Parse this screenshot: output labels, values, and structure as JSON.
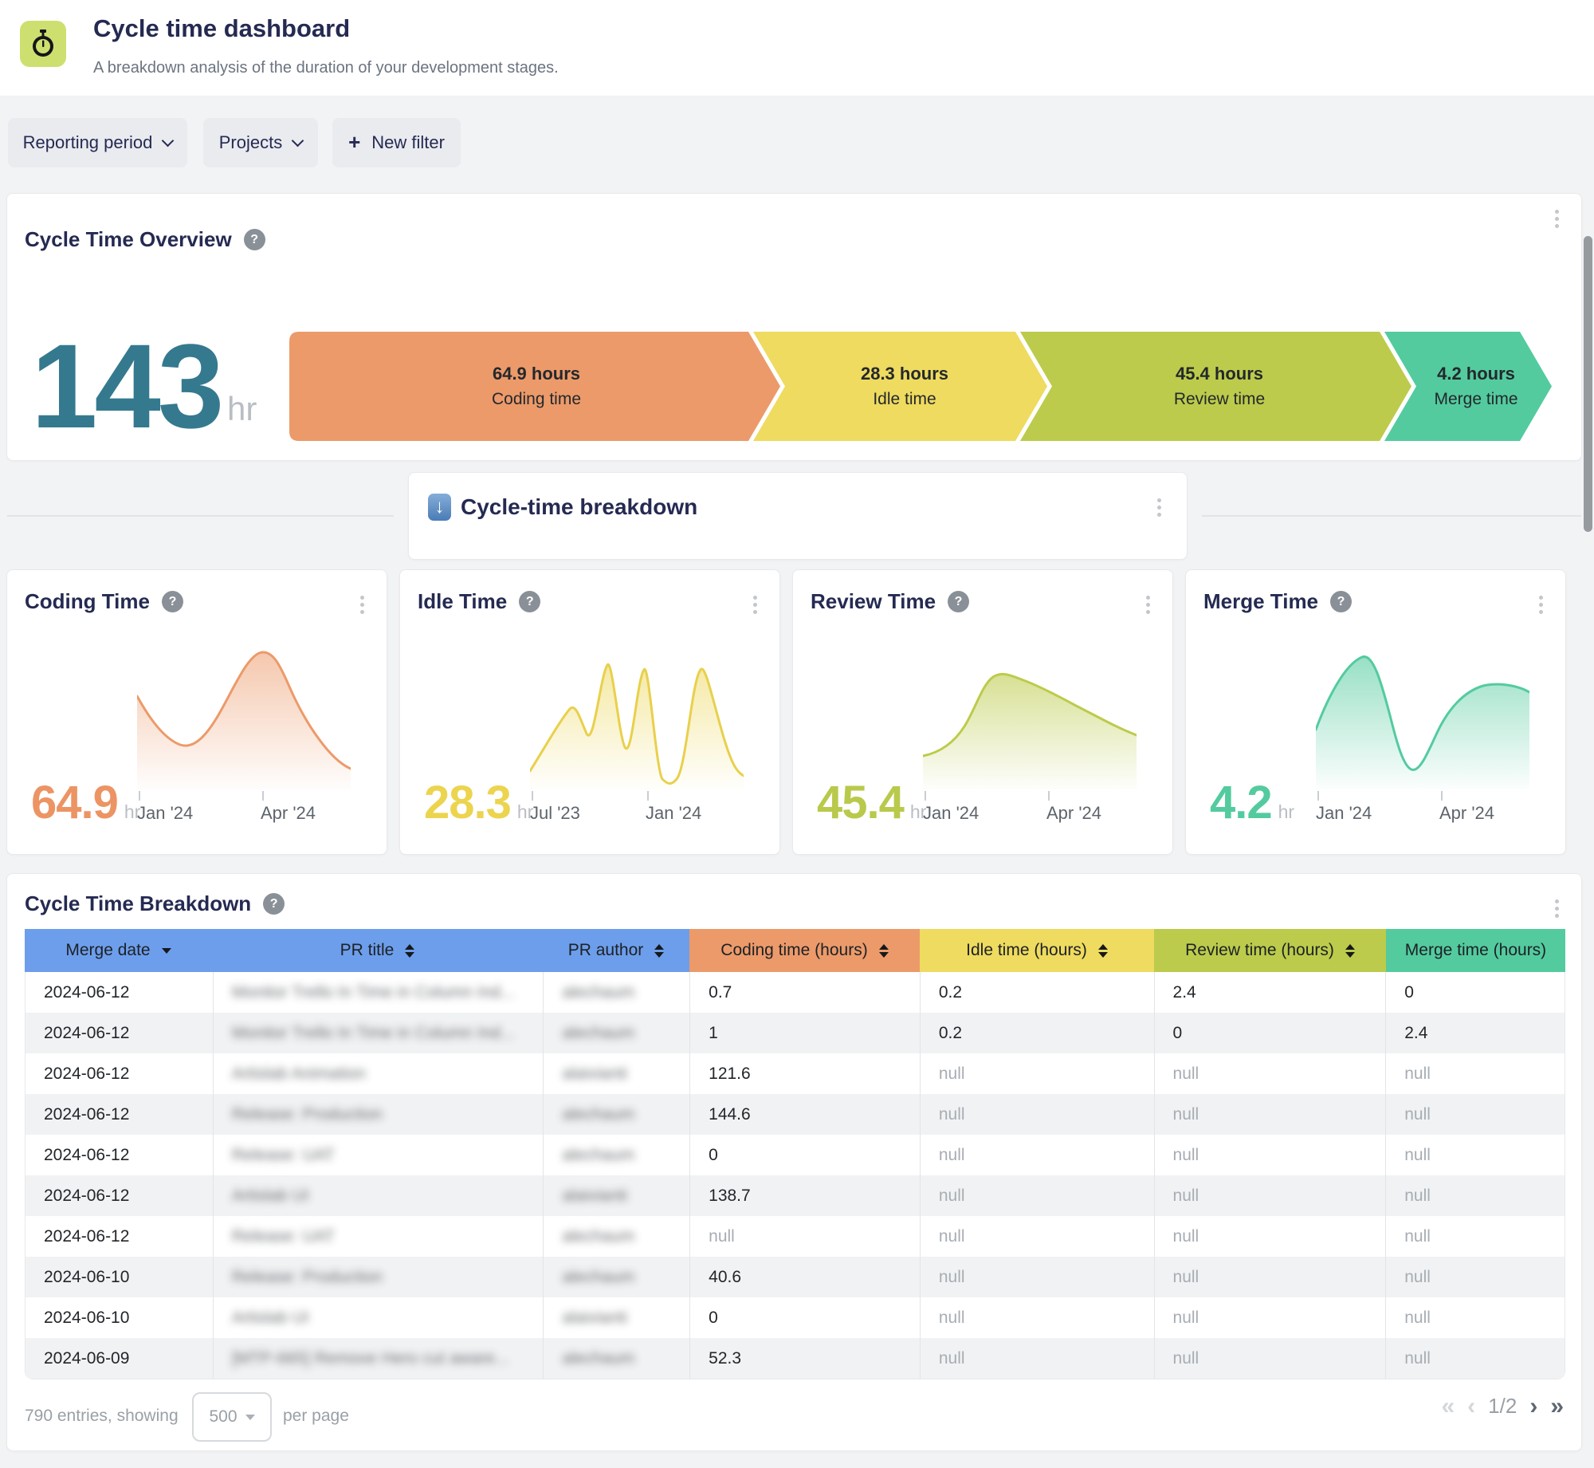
{
  "app": {
    "title": "Cycle time dashboard",
    "subtitle": "A breakdown analysis of the duration of your development stages.",
    "icon": "stopwatch-icon"
  },
  "filters": {
    "reporting_period": "Reporting period",
    "projects": "Projects",
    "new_filter": "New filter",
    "plus_glyph": "+"
  },
  "overview": {
    "title": "Cycle Time Overview",
    "total_value": "143",
    "total_unit": "hr",
    "segments": [
      {
        "value": "64.9 hours",
        "label": "Coding time",
        "color": "#ec9a6a"
      },
      {
        "value": "28.3 hours",
        "label": "Idle time",
        "color": "#eedb5f"
      },
      {
        "value": "45.4 hours",
        "label": "Review time",
        "color": "#bccb4b"
      },
      {
        "value": "4.2 hours",
        "label": "Merge time",
        "color": "#53cb9f"
      }
    ]
  },
  "banner": {
    "title": "Cycle-time breakdown",
    "emoji_glyph": "↓"
  },
  "metric_cards": [
    {
      "title": "Coding Time",
      "value": "64.9",
      "unit": "hr",
      "color": "#ec9a6a",
      "ticks": [
        "Jan '24",
        "Apr '24"
      ]
    },
    {
      "title": "Idle Time",
      "value": "28.3",
      "unit": "hr",
      "color": "#ecd75a",
      "ticks": [
        "Jul '23",
        "Jan '24"
      ]
    },
    {
      "title": "Review Time",
      "value": "45.4",
      "unit": "hr",
      "color": "#bccb4b",
      "ticks": [
        "Jan '24",
        "Apr '24"
      ]
    },
    {
      "title": "Merge Time",
      "value": "4.2",
      "unit": "hr",
      "color": "#53cb9f",
      "ticks": [
        "Jan '24",
        "Apr '24"
      ]
    }
  ],
  "table": {
    "title": "Cycle Time Breakdown",
    "columns": [
      {
        "label": "Merge date",
        "sort": "desc",
        "color": "#6d9eeb"
      },
      {
        "label": "PR title",
        "sort": "both",
        "color": "#6d9eeb"
      },
      {
        "label": "PR author",
        "sort": "both",
        "color": "#6d9eeb"
      },
      {
        "label": "Coding time (hours)",
        "sort": "both",
        "color": "#ec9a6a"
      },
      {
        "label": "Idle time (hours)",
        "sort": "both",
        "color": "#eedb5f"
      },
      {
        "label": "Review time (hours)",
        "sort": "both",
        "color": "#bccb4b"
      },
      {
        "label": "Merge time (hours)",
        "sort": "none",
        "color": "#53cb9f"
      }
    ],
    "blurred_columns": [
      1,
      2
    ],
    "rows": [
      [
        "2024-06-12",
        "Monitor Trello In Time in Column Ind...",
        "alechaum",
        "0.7",
        "0.2",
        "2.4",
        "0"
      ],
      [
        "2024-06-12",
        "Monitor Trello In Time in Column Ind...",
        "alechaum",
        "1",
        "0.2",
        "0",
        "2.4"
      ],
      [
        "2024-06-12",
        "Artislab Animation",
        "alaivianti",
        "121.6",
        "null",
        "null",
        "null"
      ],
      [
        "2024-06-12",
        "Release: Production",
        "alechaum",
        "144.6",
        "null",
        "null",
        "null"
      ],
      [
        "2024-06-12",
        "Release: UAT",
        "alechaum",
        "0",
        "null",
        "null",
        "null"
      ],
      [
        "2024-06-12",
        "Artislab UI",
        "alaivianti",
        "138.7",
        "null",
        "null",
        "null"
      ],
      [
        "2024-06-12",
        "Release: UAT",
        "alechaum",
        "null",
        "null",
        "null",
        "null"
      ],
      [
        "2024-06-10",
        "Release: Production",
        "alechaum",
        "40.6",
        "null",
        "null",
        "null"
      ],
      [
        "2024-06-10",
        "Artislab UI",
        "alaivianti",
        "0",
        "null",
        "null",
        "null"
      ],
      [
        "2024-06-09",
        "[MTP-665] Remove Hero cut aware...",
        "alechaum",
        "52.3",
        "null",
        "null",
        "null"
      ]
    ]
  },
  "footer": {
    "entries_text": "790 entries, showing",
    "page_size": "500",
    "per_page_text": "per page",
    "page_indicator": "1/2",
    "first_glyph": "«",
    "prev_glyph": "‹",
    "next_glyph": "›",
    "last_glyph": "»"
  }
}
